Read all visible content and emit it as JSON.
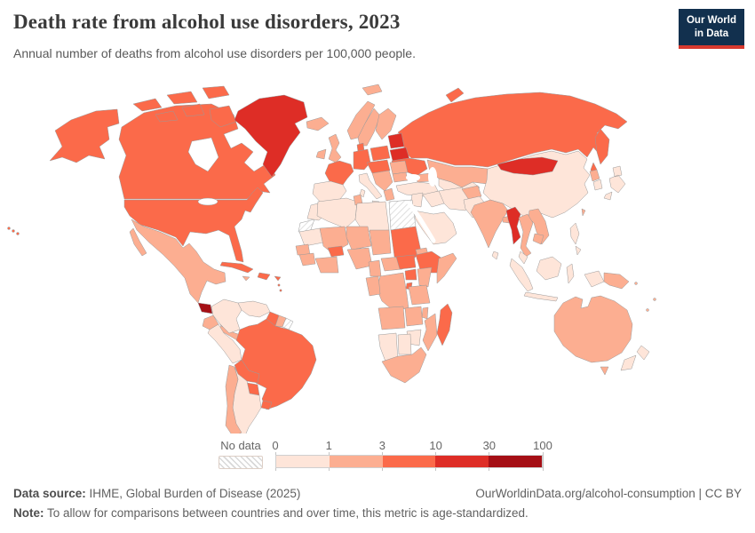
{
  "header": {
    "title": "Death rate from alcohol use disorders, 2023",
    "subtitle": "Annual number of deaths from alcohol use disorders per 100,000 people.",
    "logo_line1": "Our World",
    "logo_line2": "in Data",
    "logo_bg": "#12304e",
    "logo_accent": "#d8392e"
  },
  "legend": {
    "no_data_label": "No data",
    "ticks": [
      "0",
      "1",
      "3",
      "10",
      "30",
      "100"
    ]
  },
  "footer": {
    "source_label": "Data source:",
    "source_text": " IHME, Global Burden of Disease (2025)",
    "link_text": "OurWorldinData.org/alcohol-consumption | CC BY",
    "note_label": "Note:",
    "note_text": " To allow for comparisons between countries and over time, this metric is age-standardized."
  },
  "chart_data": {
    "type": "choropleth",
    "title": "Death rate from alcohol use disorders, 2023",
    "unit": "deaths per 100,000 people (age-standardized)",
    "year": 2023,
    "scale": {
      "kind": "binned-log",
      "domain": [
        0,
        1,
        3,
        10,
        30,
        100
      ],
      "bin_labels": [
        "0-1",
        "1-3",
        "3-10",
        "10-30",
        "30-100"
      ],
      "colors": [
        "#fee5d9",
        "#fcae91",
        "#fb6a4a",
        "#de2d26",
        "#a50f15"
      ],
      "no_data": "hatched",
      "border_color": "#9a9a9a",
      "ocean_color": "#ffffff"
    },
    "regions": {
      "united-states": 2,
      "canada": 2,
      "greenland": 3,
      "iceland": 1,
      "mexico": 1,
      "guatemala": 4,
      "honduras": 2,
      "nicaragua": 2,
      "costa-rica-panama": 1,
      "cuba": 2,
      "hispaniola": 2,
      "jamaica": 1,
      "puerto-rico": 2,
      "lesser-antilles": 2,
      "colombia": 0,
      "venezuela": 0,
      "guyana": 2,
      "suriname": 1,
      "french-guiana": "nodata",
      "brazil": 2,
      "ecuador": 1,
      "peru": 0,
      "bolivia": 2,
      "paraguay": 2,
      "uruguay": 2,
      "chile": 1,
      "argentina": 0,
      "ireland": 1,
      "united-kingdom": 1,
      "norway": 1,
      "sweden": 1,
      "finland": 1,
      "denmark": 2,
      "baltic-states": 3,
      "belarus": 3,
      "germany": 2,
      "poland": 2,
      "france": 2,
      "spain-portugal": 0,
      "italy": 0,
      "czechia-austria-hungary": 2,
      "balkans": 1,
      "greece": 1,
      "romania": 1,
      "bulgaria": 1,
      "ukraine": 2,
      "turkey": 0,
      "svalbard": 1,
      "russia": 2,
      "kazakhstan": 1,
      "central-asia": 0,
      "caucasus": 1,
      "iran": 0,
      "iraq": 0,
      "syria-levant": 0,
      "saudi-arabia": 0,
      "afghanistan": 1,
      "pakistan": 0,
      "india": 1,
      "sri-lanka": 0,
      "bangladesh": 1,
      "china": 0,
      "mongolia": 3,
      "taiwan": 1,
      "north-korea": 1,
      "south-korea": 0,
      "japan": 0,
      "myanmar": 3,
      "thailand": 1,
      "laos-vietnam": 1,
      "cambodia": 1,
      "malaysia": 0,
      "indonesia": 0,
      "philippines": 0,
      "papua-new-guinea": 1,
      "pacific-islands": 1,
      "australia": 1,
      "new-zealand": 0,
      "morocco": 0,
      "western-sahara": "nodata",
      "algeria": 0,
      "tunisia": 1,
      "libya": 0,
      "egypt": "nodata",
      "mauritania": 0,
      "mali": 1,
      "niger": 1,
      "chad": 1,
      "sudan": 2,
      "eritrea": 1,
      "senegal": 1,
      "guinea": 1,
      "ghana-ivory-coast": 1,
      "burkina-faso": 2,
      "nigeria": 1,
      "cameroon": 1,
      "central-african-republic": 1,
      "south-sudan": 2,
      "ethiopia": 2,
      "somalia": 1,
      "uganda": 2,
      "kenya": 1,
      "dr-congo": 1,
      "gabon-congo": 1,
      "rwanda-burundi": 2,
      "tanzania": 1,
      "angola": 1,
      "zambia": 1,
      "malawi": 1,
      "mozambique": 1,
      "zimbabwe": 0,
      "namibia": 0,
      "botswana": 0,
      "south-africa": 1,
      "madagascar": 2
    }
  }
}
